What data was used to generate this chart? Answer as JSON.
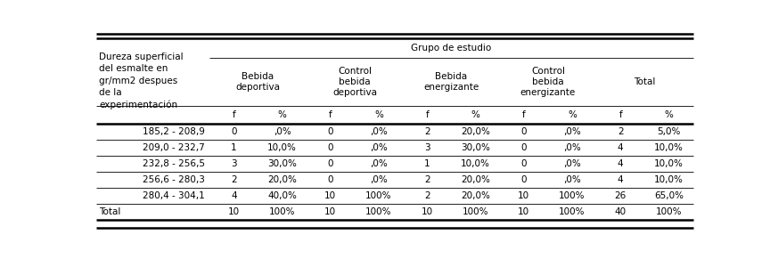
{
  "title": "Grupo de estudio",
  "row_header_text": "Dureza superficial\ndel esmalte en\ngr/mm2 despues\nde la\nexperimentación",
  "group_headers": [
    "Bebida\ndeportiva",
    "Control\nbebida\ndeportiva",
    "Bebida\nenergizante",
    "Control\nbebida\nenergizante",
    "Total"
  ],
  "fp_headers": [
    "f",
    "%",
    "f",
    "%",
    "f",
    "%",
    "f",
    "%",
    "f",
    "%"
  ],
  "row_labels": [
    "185,2 - 208,9",
    "209,0 - 232,7",
    "232,8 - 256,5",
    "256,6 - 280,3",
    "280,4 - 304,1",
    "Total"
  ],
  "row_label_align": [
    "right",
    "right",
    "right",
    "right",
    "right",
    "left"
  ],
  "data": [
    [
      "0",
      ",0%",
      "0",
      ",0%",
      "2",
      "20,0%",
      "0",
      ",0%",
      "2",
      "5,0%"
    ],
    [
      "1",
      "10,0%",
      "0",
      ",0%",
      "3",
      "30,0%",
      "0",
      ",0%",
      "4",
      "10,0%"
    ],
    [
      "3",
      "30,0%",
      "0",
      ",0%",
      "1",
      "10,0%",
      "0",
      ",0%",
      "4",
      "10,0%"
    ],
    [
      "2",
      "20,0%",
      "0",
      ",0%",
      "2",
      "20,0%",
      "0",
      ",0%",
      "4",
      "10,0%"
    ],
    [
      "4",
      "40,0%",
      "10",
      "100%",
      "2",
      "20,0%",
      "10",
      "100%",
      "26",
      "65,0%"
    ],
    [
      "10",
      "100%",
      "10",
      "100%",
      "10",
      "100%",
      "10",
      "100%",
      "40",
      "100%"
    ]
  ],
  "bg_color": "#ffffff",
  "text_color": "#000000",
  "lw_thick": 1.8,
  "lw_thin": 0.6,
  "fs_header": 7.5,
  "fs_data": 7.5
}
